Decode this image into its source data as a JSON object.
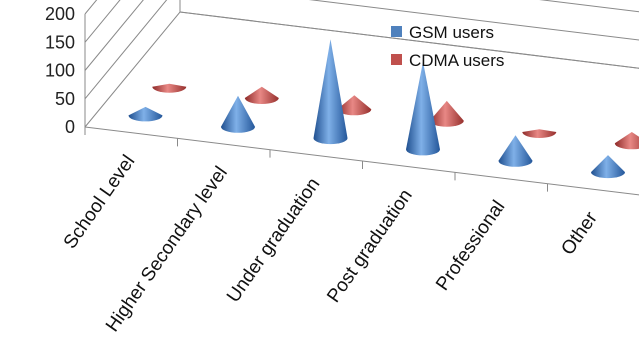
{
  "chart_data": {
    "type": "bar",
    "title": "",
    "xlabel": "",
    "ylabel": "",
    "ylim": [
      0,
      200
    ],
    "y_ticks": [
      "0",
      "50",
      "100",
      "150",
      "200"
    ],
    "categories": [
      "School Level",
      "Higher Secondary level",
      "Under graduation",
      "Post graduation",
      "Professional",
      "Other"
    ],
    "series": [
      {
        "name": "GSM users",
        "values": [
          15,
          55,
          175,
          155,
          45,
          30
        ],
        "color": "#4f81bd"
      },
      {
        "name": "CDMA users",
        "values": [
          5,
          20,
          25,
          35,
          5,
          20
        ],
        "color": "#c0504d"
      }
    ],
    "mark_shape": "3d-cone",
    "grid": true,
    "legend_position": "top-right"
  }
}
